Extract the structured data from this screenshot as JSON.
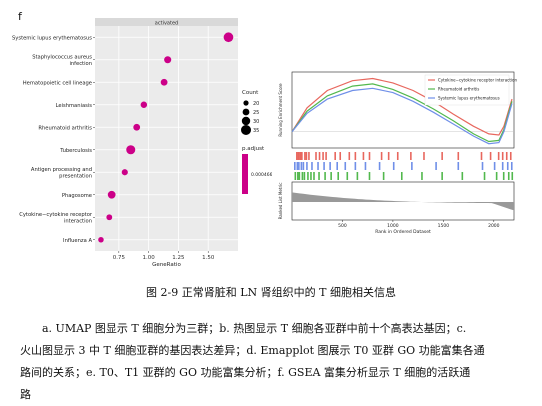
{
  "panel_letter": "f",
  "caption": "图 2-9 正常肾脏和 LN 肾组织中的 T 细胞相关信息",
  "paragraph": [
    "a. UMAP 图显示 T 细胞分为三群；b. 热图显示 T 细胞各亚群中前十个高表达基因；c.",
    "火山图显示 3 中 T 细胞亚群的基因表达差异；d. Emapplot 图展示 T0 亚群 GO 功能富集各通",
    "路间的关系；e. T0、T1 亚群的 GO 功能富集分析；f. GSEA 富集分析显示 T 细胞的活跃通",
    "路"
  ],
  "chart_data": [
    {
      "type": "scatter",
      "strip_label": "activated",
      "xlabel": "GeneRatio",
      "ylabel": "",
      "xticks": [
        "0.75",
        "1.00",
        "1.25",
        "1.50"
      ],
      "xlim": [
        0.55,
        1.75
      ],
      "categories": [
        "Systemic lupus erythematosus",
        "Staphylococcus aureus infection",
        "Hematopoietic cell lineage",
        "Leishmaniasis",
        "Rheumatoid arthritis",
        "Tuberculosis",
        "Antigen processing and presentation",
        "Phagosome",
        "Cytokine−cytokine receptor interaction",
        "Influenza A"
      ],
      "gene_ratio": [
        1.67,
        1.16,
        1.13,
        0.96,
        0.9,
        0.85,
        0.8,
        0.69,
        0.67,
        0.6
      ],
      "count": [
        34,
        26,
        25,
        24,
        25,
        32,
        23,
        28,
        22,
        21
      ],
      "legend_count": {
        "title": "Count",
        "values": [
          "20",
          "25",
          "30",
          "35"
        ]
      },
      "legend_padjust": {
        "title": "p.adjust",
        "value": "0.000466077"
      },
      "dot_color": "#cc0088"
    },
    {
      "type": "line",
      "ylabel_top": "Running Enrichment Score",
      "ylabel_bottom": "Ranked List Metric",
      "xlabel": "Rank in Ordered Dataset",
      "xticks": [
        "500",
        "1000",
        "1500",
        "2000"
      ],
      "xlim": [
        0,
        2200
      ],
      "series": [
        {
          "name": "Cytokine−cytokine receptor interaction",
          "color": "#e8675e",
          "x": [
            0,
            150,
            350,
            600,
            800,
            1000,
            1200,
            1400,
            1600,
            1800,
            1950,
            2050,
            2100,
            2180
          ],
          "y": [
            0.0,
            0.22,
            0.38,
            0.47,
            0.49,
            0.45,
            0.38,
            0.28,
            0.16,
            0.05,
            -0.02,
            -0.03,
            0.05,
            0.3
          ]
        },
        {
          "name": "Rheumatoid arthritis",
          "color": "#52b84d",
          "x": [
            0,
            150,
            350,
            600,
            800,
            1000,
            1200,
            1400,
            1600,
            1800,
            1950,
            2050,
            2100,
            2180
          ],
          "y": [
            0.0,
            0.19,
            0.33,
            0.42,
            0.44,
            0.39,
            0.31,
            0.21,
            0.1,
            -0.02,
            -0.09,
            -0.08,
            0.02,
            0.28
          ]
        },
        {
          "name": "Systemic lupus erythematosus",
          "color": "#6f8fe8",
          "x": [
            0,
            150,
            350,
            600,
            800,
            1000,
            1200,
            1400,
            1600,
            1800,
            1950,
            2050,
            2100,
            2180
          ],
          "y": [
            0.0,
            0.17,
            0.3,
            0.38,
            0.4,
            0.36,
            0.28,
            0.18,
            0.07,
            -0.04,
            -0.11,
            -0.1,
            0.0,
            0.26
          ]
        }
      ]
    }
  ]
}
